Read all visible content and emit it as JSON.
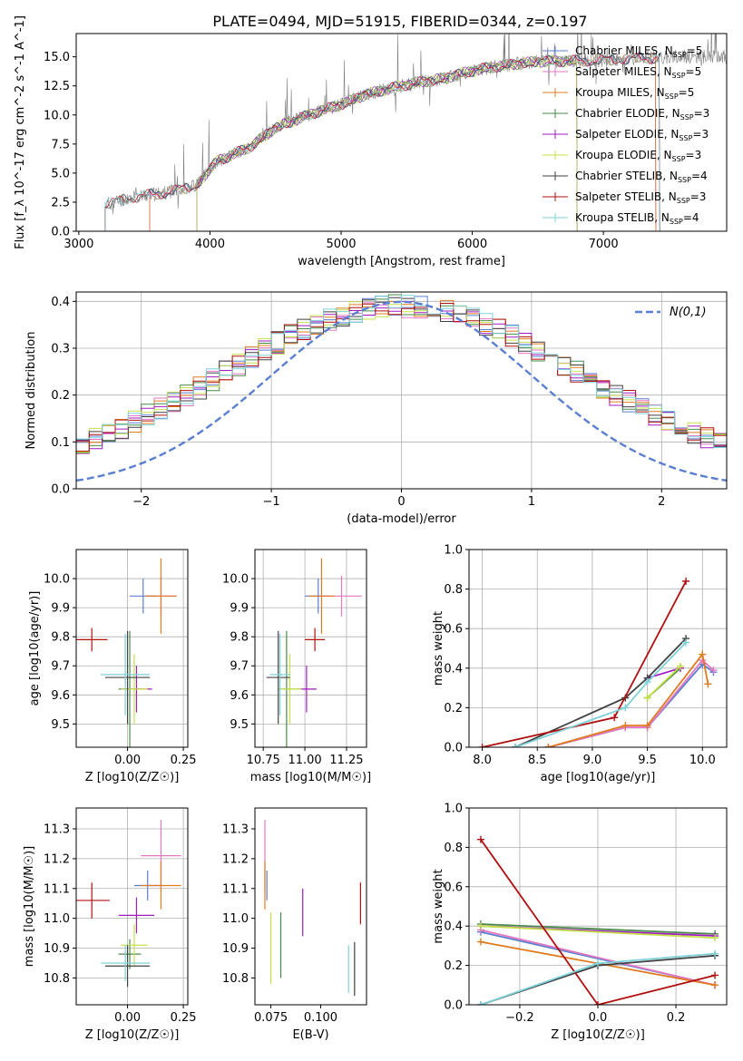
{
  "figure_title": "PLATE=0494, MJD=51915, FIBERID=0344, z=0.197",
  "colors": {
    "Chabrier MILES": "#5b7fd0",
    "Salpeter MILES": "#e377c2",
    "Kroupa MILES": "#e07b20",
    "Chabrier ELODIE": "#4a8a4a",
    "Salpeter ELODIE": "#a01bc0",
    "Kroupa ELODIE": "#c6e04a",
    "Chabrier STELIB": "#404040",
    "Salpeter STELIB": "#b01010",
    "Kroupa STELIB": "#7dd0d8",
    "data": "#7f7f7f",
    "normal": "#5b7fd0"
  },
  "chart_data": [
    {
      "id": "spectrum",
      "type": "line",
      "xlabel": "wavelength [Angstrom, rest frame]",
      "ylabel": "Flux [f_λ 10^-17 erg cm^-2 s^-1 A^-1]",
      "xlim": [
        2980,
        7940
      ],
      "ylim": [
        0,
        17
      ],
      "xticks": [
        3000,
        4000,
        5000,
        6000,
        7000
      ],
      "yticks": [
        0.0,
        2.5,
        5.0,
        7.5,
        10.0,
        12.5,
        15.0
      ],
      "grid": false,
      "legend": "top-right",
      "legend_entries": [
        {
          "model": "Chabrier MILES",
          "label": "Chabrier MILES, N",
          "sub": "SSP",
          "tail": "=5"
        },
        {
          "model": "Salpeter MILES",
          "label": "Salpeter MILES, N",
          "sub": "SSP",
          "tail": "=5"
        },
        {
          "model": "Kroupa MILES",
          "label": "Kroupa MILES, N",
          "sub": "SSP",
          "tail": "=5"
        },
        {
          "model": "Chabrier ELODIE",
          "label": "Chabrier ELODIE, N",
          "sub": "SSP",
          "tail": "=3"
        },
        {
          "model": "Salpeter ELODIE",
          "label": "Salpeter ELODIE, N",
          "sub": "SSP",
          "tail": "=3"
        },
        {
          "model": "Kroupa ELODIE",
          "label": "Kroupa ELODIE, N",
          "sub": "SSP",
          "tail": "=3"
        },
        {
          "model": "Chabrier STELIB",
          "label": "Chabrier STELIB, N",
          "sub": "SSP",
          "tail": "=4"
        },
        {
          "model": "Salpeter STELIB",
          "label": "Salpeter STELIB, N",
          "sub": "SSP",
          "tail": "=3"
        },
        {
          "model": "Kroupa STELIB",
          "label": "Kroupa STELIB, N",
          "sub": "SSP",
          "tail": "=4"
        }
      ],
      "continuum": [
        [
          3200,
          2.3
        ],
        [
          3400,
          2.9
        ],
        [
          3700,
          3.4
        ],
        [
          3900,
          4.0
        ],
        [
          4050,
          6.0
        ],
        [
          4300,
          7.2
        ],
        [
          4500,
          8.9
        ],
        [
          4800,
          10.2
        ],
        [
          5000,
          10.9
        ],
        [
          5200,
          11.8
        ],
        [
          5500,
          12.6
        ],
        [
          5800,
          13.2
        ],
        [
          6000,
          13.8
        ],
        [
          6200,
          14.2
        ],
        [
          6500,
          14.6
        ],
        [
          7000,
          14.7
        ],
        [
          7500,
          15.0
        ],
        [
          7940,
          15.0
        ]
      ],
      "model_ranges": {
        "Chabrier MILES": [
          3540,
          7400
        ],
        "Salpeter MILES": [
          3540,
          7400
        ],
        "Kroupa MILES": [
          3540,
          7400
        ],
        "Chabrier ELODIE": [
          3900,
          6800
        ],
        "Salpeter ELODIE": [
          3900,
          6800
        ],
        "Kroupa ELODIE": [
          3900,
          6800
        ],
        "Chabrier STELIB": [
          3200,
          7430
        ],
        "Salpeter STELIB": [
          3200,
          7430
        ],
        "Kroupa STELIB": [
          3200,
          7430
        ]
      }
    },
    {
      "id": "residuals",
      "type": "histogram",
      "xlabel": "(data-model)/error",
      "ylabel": "Normed distribution",
      "xlim": [
        -2.5,
        2.5
      ],
      "ylim": [
        0,
        0.42
      ],
      "xticks": [
        -2,
        -1,
        0,
        1,
        2
      ],
      "xticklabels": [
        "−2",
        "−1",
        "0",
        "1",
        "2"
      ],
      "yticks": [
        0.0,
        0.1,
        0.2,
        0.3,
        0.4
      ],
      "grid": true,
      "legend": "top-right",
      "legend_label": "N(0,1)",
      "bin_width": 0.1
    },
    {
      "id": "age-vs-Z",
      "type": "errorbar",
      "xlabel": "Z [log10(Z/Z☉)]",
      "ylabel": "age [log10(age/yr)]",
      "xlim": [
        -0.23,
        0.27
      ],
      "ylim": [
        9.42,
        10.1
      ],
      "xticks": [
        0.0,
        0.25
      ],
      "xticklabels": [
        "0.00",
        "0.25"
      ],
      "yticks": [
        9.5,
        9.6,
        9.7,
        9.8,
        9.9,
        10.0
      ],
      "grid": true,
      "points": [
        {
          "model": "Chabrier MILES",
          "x": 0.07,
          "xerr": 0.06,
          "y": 9.94,
          "yerr": 0.06
        },
        {
          "model": "Salpeter MILES",
          "x": 0.15,
          "xerr": 0.07,
          "y": 9.94,
          "yerr": 0.07
        },
        {
          "model": "Kroupa MILES",
          "x": 0.15,
          "xerr": 0.07,
          "y": 9.94,
          "yerr": 0.13
        },
        {
          "model": "Chabrier ELODIE",
          "x": 0.01,
          "xerr": 0.05,
          "y": 9.62,
          "yerr": 0.2
        },
        {
          "model": "Salpeter ELODIE",
          "x": 0.04,
          "xerr": 0.07,
          "y": 9.62,
          "yerr": 0.08
        },
        {
          "model": "Kroupa ELODIE",
          "x": 0.03,
          "xerr": 0.06,
          "y": 9.62,
          "yerr": 0.12
        },
        {
          "model": "Chabrier STELIB",
          "x": 0.0,
          "xerr": 0.1,
          "y": 9.66,
          "yerr": 0.16
        },
        {
          "model": "Salpeter STELIB",
          "x": -0.16,
          "xerr": 0.07,
          "y": 9.79,
          "yerr": 0.04
        },
        {
          "model": "Kroupa STELIB",
          "x": -0.01,
          "xerr": 0.11,
          "y": 9.67,
          "yerr": 0.14
        }
      ]
    },
    {
      "id": "age-vs-mass",
      "type": "errorbar",
      "xlabel": "mass [log10(M/M☉)]",
      "ylabel": "",
      "xlim": [
        10.7,
        11.37
      ],
      "ylim": [
        9.42,
        10.1
      ],
      "xticks": [
        10.75,
        11.0,
        11.25
      ],
      "xticklabels": [
        "10.75",
        "11.00",
        "11.25"
      ],
      "yticks": [
        9.5,
        9.6,
        9.7,
        9.8,
        9.9,
        10.0
      ],
      "grid": true,
      "points": [
        {
          "model": "Chabrier MILES",
          "x": 11.08,
          "xerr": 0.08,
          "y": 9.94,
          "yerr": 0.06
        },
        {
          "model": "Salpeter MILES",
          "x": 11.22,
          "xerr": 0.12,
          "y": 9.94,
          "yerr": 0.07
        },
        {
          "model": "Kroupa MILES",
          "x": 11.1,
          "xerr": 0.08,
          "y": 9.94,
          "yerr": 0.13
        },
        {
          "model": "Chabrier ELODIE",
          "x": 10.89,
          "xerr": 0.05,
          "y": 9.62,
          "yerr": 0.2
        },
        {
          "model": "Salpeter ELODIE",
          "x": 11.01,
          "xerr": 0.06,
          "y": 9.62,
          "yerr": 0.08
        },
        {
          "model": "Kroupa ELODIE",
          "x": 10.91,
          "xerr": 0.07,
          "y": 9.62,
          "yerr": 0.12
        },
        {
          "model": "Chabrier STELIB",
          "x": 10.84,
          "xerr": 0.07,
          "y": 9.66,
          "yerr": 0.16
        },
        {
          "model": "Salpeter STELIB",
          "x": 11.06,
          "xerr": 0.06,
          "y": 9.79,
          "yerr": 0.04
        },
        {
          "model": "Kroupa STELIB",
          "x": 10.85,
          "xerr": 0.06,
          "y": 9.67,
          "yerr": 0.14
        }
      ]
    },
    {
      "id": "mass-weight-vs-age",
      "type": "line",
      "xlabel": "age [log10(age/yr)]",
      "ylabel": "mass weight",
      "xlim": [
        7.88,
        10.22
      ],
      "ylim": [
        0.0,
        1.0
      ],
      "xticks": [
        8.0,
        8.5,
        9.0,
        9.5,
        10.0
      ],
      "xticklabels": [
        "8.0",
        "8.5",
        "9.0",
        "9.5",
        "10.0"
      ],
      "yticks": [
        0.0,
        0.2,
        0.4,
        0.6,
        0.8,
        1.0
      ],
      "grid": true,
      "series": [
        {
          "model": "Chabrier MILES",
          "points": [
            [
              8.6,
              0.0
            ],
            [
              9.3,
              0.1
            ],
            [
              9.5,
              0.1
            ],
            [
              10.0,
              0.42
            ],
            [
              10.1,
              0.38
            ]
          ]
        },
        {
          "model": "Salpeter MILES",
          "points": [
            [
              8.6,
              0.0
            ],
            [
              9.3,
              0.1
            ],
            [
              9.5,
              0.1
            ],
            [
              10.0,
              0.44
            ],
            [
              10.1,
              0.39
            ]
          ]
        },
        {
          "model": "Kroupa MILES",
          "points": [
            [
              8.6,
              0.0
            ],
            [
              9.3,
              0.11
            ],
            [
              9.5,
              0.11
            ],
            [
              10.0,
              0.47
            ],
            [
              10.05,
              0.32
            ]
          ]
        },
        {
          "model": "Chabrier ELODIE",
          "points": [
            [
              9.5,
              0.25
            ],
            [
              9.8,
              0.4
            ]
          ]
        },
        {
          "model": "Salpeter ELODIE",
          "points": [
            [
              9.5,
              0.35
            ],
            [
              9.8,
              0.4
            ]
          ]
        },
        {
          "model": "Kroupa ELODIE",
          "points": [
            [
              9.5,
              0.25
            ],
            [
              9.8,
              0.41
            ]
          ]
        },
        {
          "model": "Chabrier STELIB",
          "points": [
            [
              8.3,
              0.0
            ],
            [
              9.3,
              0.25
            ],
            [
              9.5,
              0.35
            ],
            [
              9.85,
              0.55
            ]
          ]
        },
        {
          "model": "Salpeter STELIB",
          "points": [
            [
              8.0,
              0.0
            ],
            [
              9.2,
              0.15
            ],
            [
              9.85,
              0.84
            ]
          ]
        },
        {
          "model": "Kroupa STELIB",
          "points": [
            [
              8.3,
              0.0
            ],
            [
              9.3,
              0.2
            ],
            [
              9.5,
              0.33
            ],
            [
              9.85,
              0.53
            ]
          ]
        }
      ]
    },
    {
      "id": "mass-vs-Z",
      "type": "errorbar",
      "xlabel": "Z [log10(Z/Z☉)]",
      "ylabel": "mass [log10(M/M☉)]",
      "xlim": [
        -0.23,
        0.27
      ],
      "ylim": [
        10.71,
        11.37
      ],
      "xticks": [
        0.0,
        0.25
      ],
      "xticklabels": [
        "0.00",
        "0.25"
      ],
      "yticks": [
        10.8,
        10.9,
        11.0,
        11.1,
        11.2,
        11.3
      ],
      "grid": true,
      "points": [
        {
          "model": "Chabrier MILES",
          "x": 0.09,
          "xerr": 0.06,
          "y": 11.11,
          "yerr": 0.05
        },
        {
          "model": "Salpeter MILES",
          "x": 0.15,
          "xerr": 0.09,
          "y": 11.21,
          "yerr": 0.12
        },
        {
          "model": "Kroupa MILES",
          "x": 0.15,
          "xerr": 0.09,
          "y": 11.11,
          "yerr": 0.08
        },
        {
          "model": "Chabrier ELODIE",
          "x": 0.01,
          "xerr": 0.05,
          "y": 10.88,
          "yerr": 0.05
        },
        {
          "model": "Salpeter ELODIE",
          "x": 0.04,
          "xerr": 0.08,
          "y": 11.01,
          "yerr": 0.06
        },
        {
          "model": "Kroupa ELODIE",
          "x": 0.03,
          "xerr": 0.06,
          "y": 10.91,
          "yerr": 0.07
        },
        {
          "model": "Chabrier STELIB",
          "x": 0.0,
          "xerr": 0.1,
          "y": 10.84,
          "yerr": 0.07
        },
        {
          "model": "Salpeter STELIB",
          "x": -0.16,
          "xerr": 0.08,
          "y": 11.06,
          "yerr": 0.06
        },
        {
          "model": "Kroupa STELIB",
          "x": -0.01,
          "xerr": 0.11,
          "y": 10.85,
          "yerr": 0.06
        }
      ]
    },
    {
      "id": "mass-vs-EBV",
      "type": "errorbar",
      "xlabel": "E(B-V)",
      "ylabel": "",
      "xlim": [
        0.067,
        0.123
      ],
      "ylim": [
        10.71,
        11.37
      ],
      "xticks": [
        0.075,
        0.1
      ],
      "xticklabels": [
        "0.075",
        "0.100"
      ],
      "yticks": [
        10.8,
        10.9,
        11.0,
        11.1,
        11.2,
        11.3
      ],
      "grid": false,
      "points": [
        {
          "model": "Chabrier MILES",
          "x": 0.073,
          "xerr": 0,
          "y": 11.11,
          "yerr": 0.05
        },
        {
          "model": "Salpeter MILES",
          "x": 0.072,
          "xerr": 0,
          "y": 11.21,
          "yerr": 0.12
        },
        {
          "model": "Kroupa MILES",
          "x": 0.072,
          "xerr": 0,
          "y": 11.11,
          "yerr": 0.08
        },
        {
          "model": "Chabrier ELODIE",
          "x": 0.08,
          "xerr": 0,
          "y": 10.91,
          "yerr": 0.11
        },
        {
          "model": "Salpeter ELODIE",
          "x": 0.091,
          "xerr": 0,
          "y": 11.02,
          "yerr": 0.08
        },
        {
          "model": "Kroupa ELODIE",
          "x": 0.075,
          "xerr": 0,
          "y": 10.9,
          "yerr": 0.12
        },
        {
          "model": "Chabrier STELIB",
          "x": 0.117,
          "xerr": 0,
          "y": 10.83,
          "yerr": 0.09
        },
        {
          "model": "Salpeter STELIB",
          "x": 0.12,
          "xerr": 0,
          "y": 11.05,
          "yerr": 0.07
        },
        {
          "model": "Kroupa STELIB",
          "x": 0.114,
          "xerr": 0,
          "y": 10.83,
          "yerr": 0.08
        }
      ]
    },
    {
      "id": "mass-weight-vs-Z",
      "type": "line",
      "xlabel": "Z [log10(Z/Z☉)]",
      "ylabel": "mass weight",
      "xlim": [
        -0.33,
        0.33
      ],
      "ylim": [
        0.0,
        1.0
      ],
      "xticks": [
        -0.2,
        0.0,
        0.2
      ],
      "xticklabels": [
        "−0.2",
        "0.0",
        "0.2"
      ],
      "yticks": [
        0.0,
        0.2,
        0.4,
        0.6,
        0.8,
        1.0
      ],
      "grid": true,
      "series": [
        {
          "model": "Chabrier MILES",
          "points": [
            [
              -0.3,
              0.37
            ],
            [
              0.3,
              0.1
            ]
          ]
        },
        {
          "model": "Salpeter MILES",
          "points": [
            [
              -0.3,
              0.38
            ],
            [
              0.3,
              0.1
            ]
          ]
        },
        {
          "model": "Kroupa MILES",
          "points": [
            [
              -0.3,
              0.32
            ],
            [
              0.3,
              0.1
            ]
          ]
        },
        {
          "model": "Chabrier ELODIE",
          "points": [
            [
              -0.3,
              0.41
            ],
            [
              0.3,
              0.36
            ]
          ]
        },
        {
          "model": "Salpeter ELODIE",
          "points": [
            [
              -0.3,
              0.4
            ],
            [
              0.3,
              0.35
            ]
          ]
        },
        {
          "model": "Kroupa ELODIE",
          "points": [
            [
              -0.3,
              0.4
            ],
            [
              0.3,
              0.34
            ]
          ]
        },
        {
          "model": "Chabrier STELIB",
          "points": [
            [
              -0.3,
              0.0
            ],
            [
              0.0,
              0.2
            ],
            [
              0.3,
              0.25
            ]
          ]
        },
        {
          "model": "Salpeter STELIB",
          "points": [
            [
              -0.3,
              0.84
            ],
            [
              0.0,
              0.0
            ],
            [
              0.3,
              0.15
            ]
          ]
        },
        {
          "model": "Kroupa STELIB",
          "points": [
            [
              -0.3,
              0.0
            ],
            [
              0.0,
              0.21
            ],
            [
              0.3,
              0.26
            ]
          ]
        }
      ]
    }
  ]
}
